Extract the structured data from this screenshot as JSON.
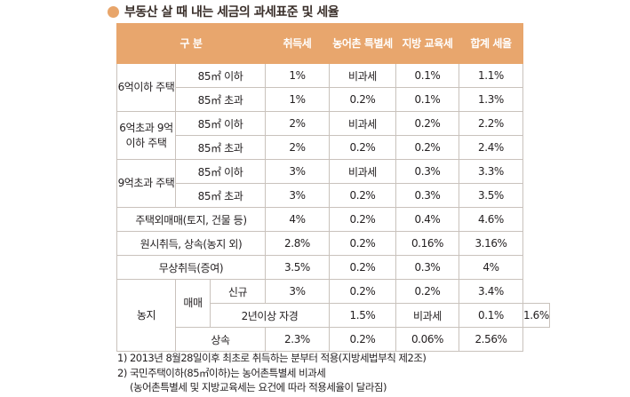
{
  "title": "부동산 살 때 내는 세금의 과세표준 및 세율",
  "colors": {
    "header_bg": "#e8a66d",
    "bullet": "#e8a56a",
    "border": "#c9c2bc"
  },
  "header": {
    "category": "구 분",
    "acq": "취득세",
    "rural": "농어촌 특별세",
    "edu": "지방 교육세",
    "total": "합계 세율"
  },
  "groups": {
    "g1": "6억이하 주택",
    "g2": "6억초과 9억이하 주택",
    "g3": "9억초과 주택",
    "nonhouse": "주택외매매(토지, 건물 등)",
    "original": "원시취득, 상속(농지 외)",
    "gift": "무상취득(증여)",
    "farmland": "농지",
    "trade": "매매",
    "new": "신규",
    "twoyear": "2년이상 자경",
    "inherit": "상속"
  },
  "rows": [
    {
      "sub": "85㎡ 이하",
      "acq": "1%",
      "rural": "비과세",
      "edu": "0.1%",
      "total": "1.1%"
    },
    {
      "sub": "85㎡ 초과",
      "acq": "1%",
      "rural": "0.2%",
      "edu": "0.1%",
      "total": "1.3%"
    },
    {
      "sub": "85㎡ 이하",
      "acq": "2%",
      "rural": "비과세",
      "edu": "0.2%",
      "total": "2.2%"
    },
    {
      "sub": "85㎡ 초과",
      "acq": "2%",
      "rural": "0.2%",
      "edu": "0.2%",
      "total": "2.4%"
    },
    {
      "sub": "85㎡ 이하",
      "acq": "3%",
      "rural": "비과세",
      "edu": "0.3%",
      "total": "3.3%"
    },
    {
      "sub": "85㎡ 초과",
      "acq": "3%",
      "rural": "0.2%",
      "edu": "0.3%",
      "total": "3.5%"
    },
    {
      "acq": "4%",
      "rural": "0.2%",
      "edu": "0.4%",
      "total": "4.6%"
    },
    {
      "acq": "2.8%",
      "rural": "0.2%",
      "edu": "0.16%",
      "total": "3.16%"
    },
    {
      "acq": "3.5%",
      "rural": "0.2%",
      "edu": "0.3%",
      "total": "4%"
    },
    {
      "acq": "3%",
      "rural": "0.2%",
      "edu": "0.2%",
      "total": "3.4%"
    },
    {
      "acq": "1.5%",
      "rural": "비과세",
      "edu": "0.1%",
      "total": "1.6%"
    },
    {
      "acq": "2.3%",
      "rural": "0.2%",
      "edu": "0.06%",
      "total": "2.56%"
    }
  ],
  "notes": [
    "1) 2013년 8월28일이후 최초로 취득하는 분부터 적용(지방세법부칙 제2조)",
    "2) 국민주택이하(85㎡이하)는 농어촌특별세 비과세",
    "(농어촌특별세 및 지방교육세는 요건에 따라 적용세율이 달라짐)"
  ]
}
